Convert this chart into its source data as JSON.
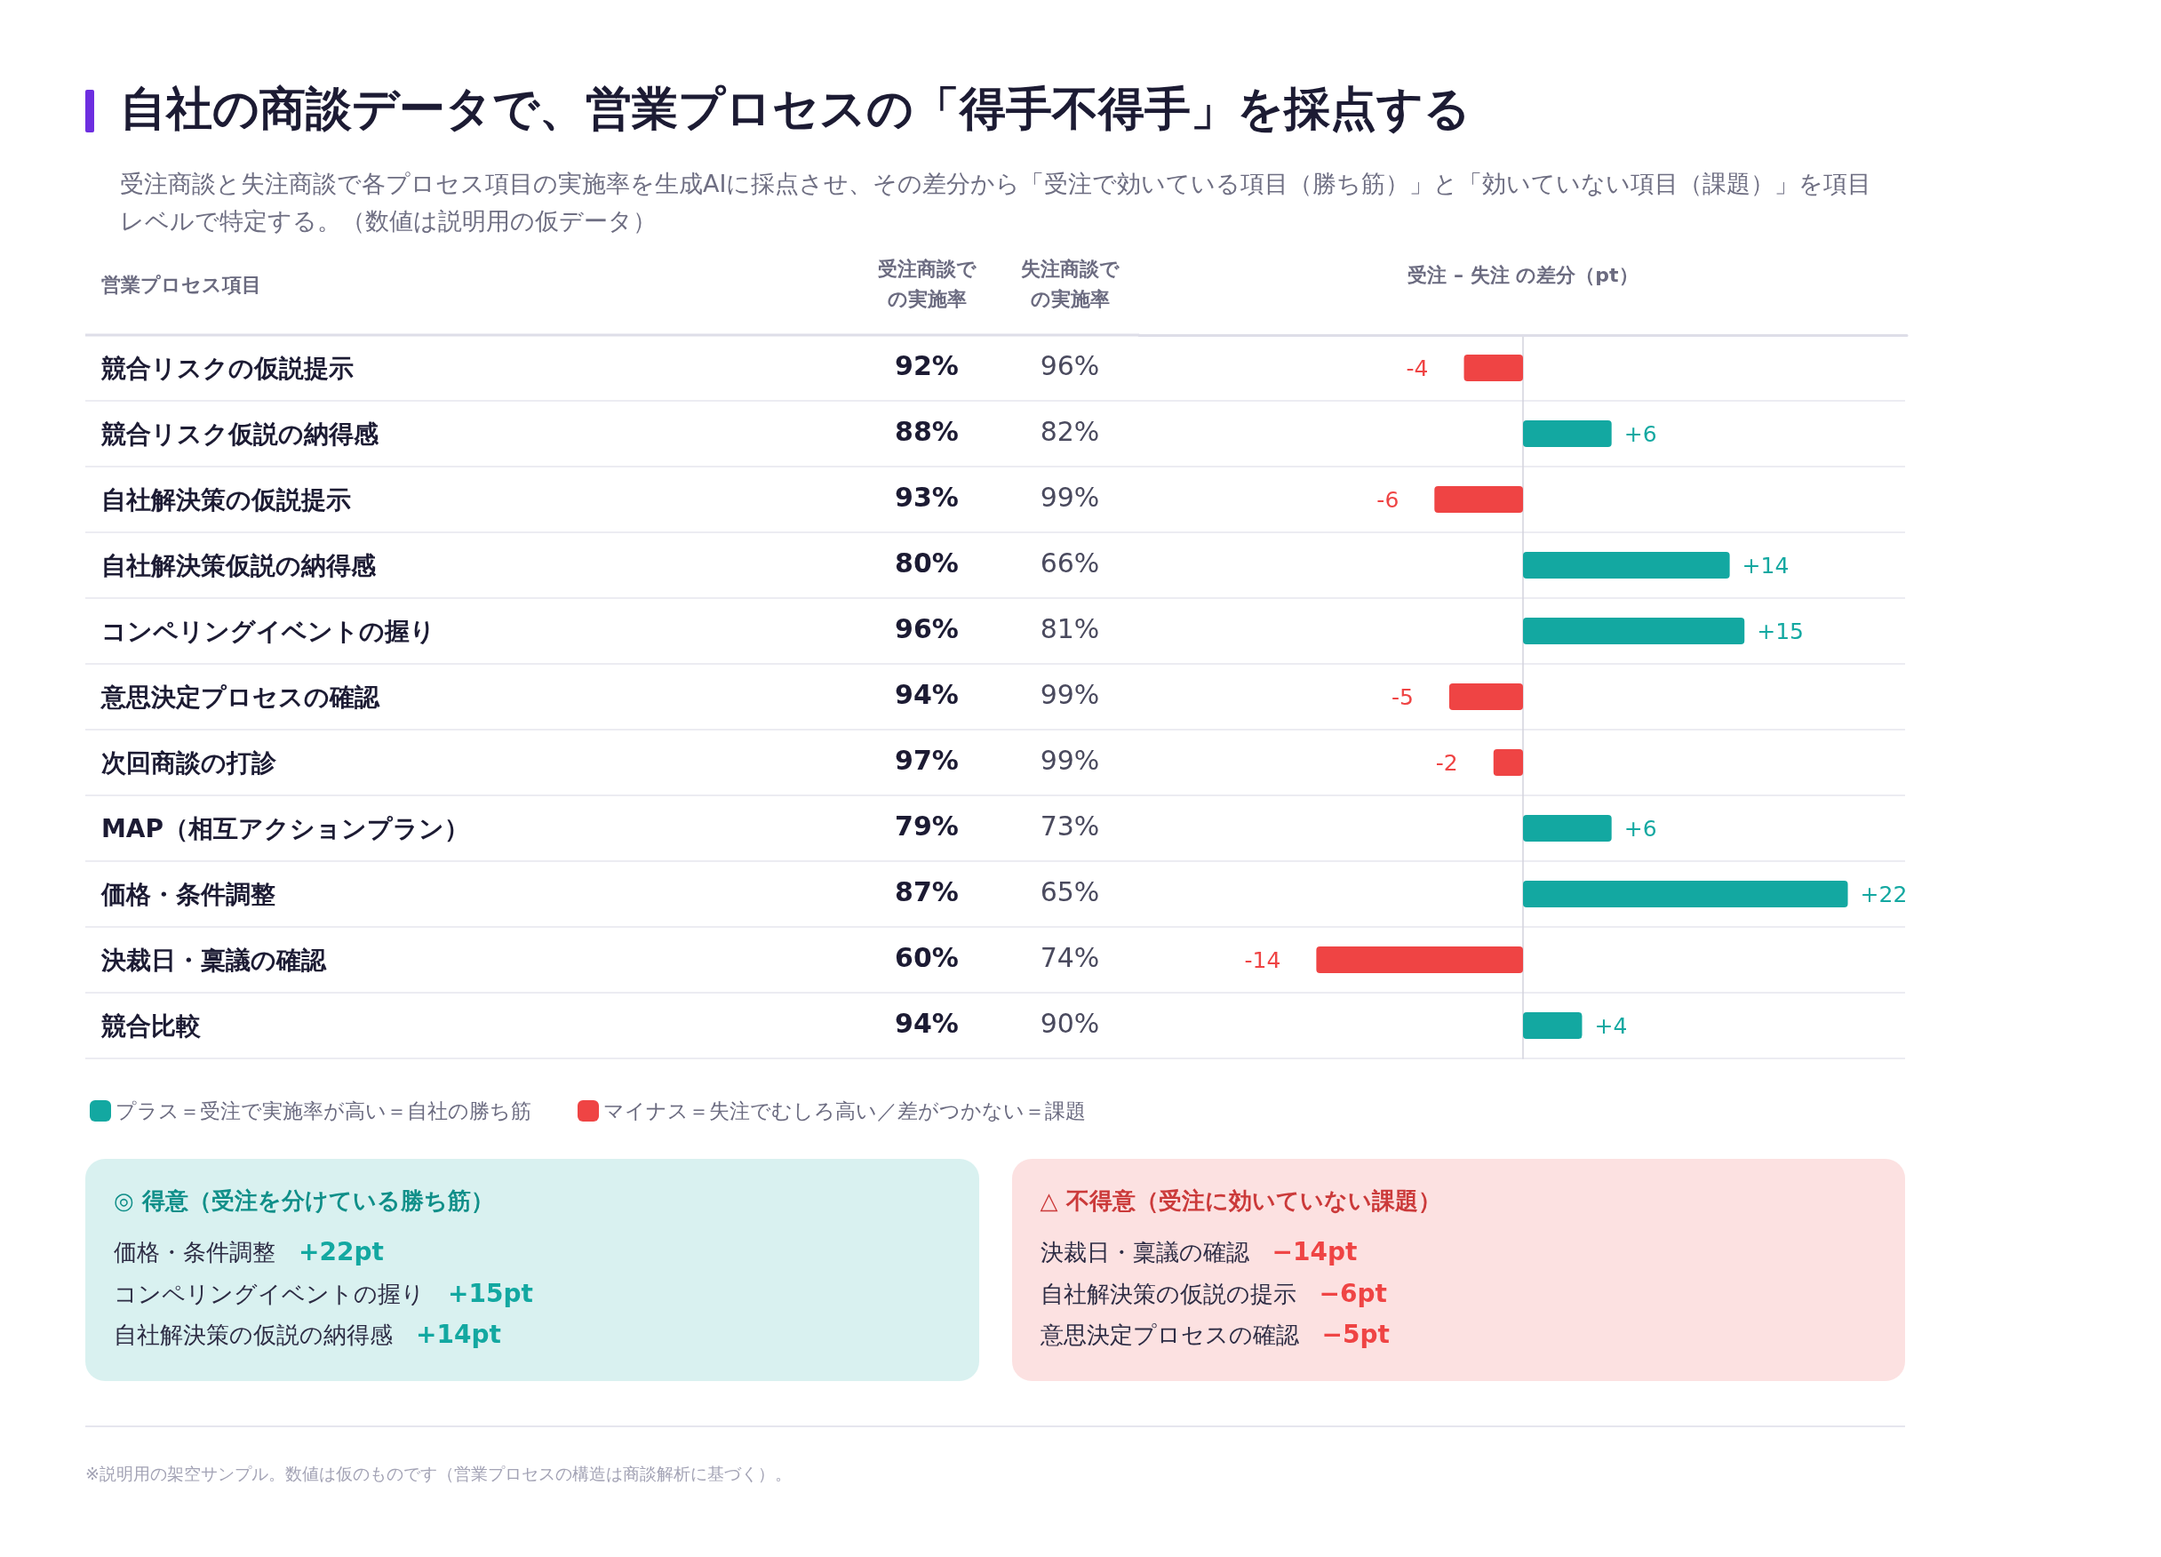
{
  "chart_data": [
    {
      "type": "bar",
      "orientation": "horizontal",
      "stacked": true,
      "title": "自社の商談データで、営業プロセスの「得手不得手」を採点する",
      "subtitle": "受注商談と失注商談で各プロセス項目の実施率を生成AIに採点させ、その差分から「受注で効いている項目（勝ち筋）」と「効いていない項目（課題）」を項目レベルで特定する。（数値は説明用の仮データ）",
      "ylabel": "営業プロセス項目",
      "xlabel": "受注 – 失注 の差分（pt）",
      "categories": [
        "競合リスクの仮説提示",
        "競合リスク仮説の納得感",
        "自社解決策の仮説提示",
        "自社解決策仮説の納得感",
        "コンペリングイベントの握り",
        "意思決定プロセスの確認",
        "次回商談の打診",
        "MAP（相互アクションプラン）",
        "価格・条件調整",
        "決裁日・稟議の確認",
        "競合比較"
      ],
      "xlim": [
        -26,
        26
      ],
      "tick_labels": "y",
      "grid": "y",
      "legend": "bottom left",
      "series": [
        {
          "name": "プラス＝受注で実施率が高い＝自社の勝ち筋",
          "color": "#13a8a1",
          "values": [
            null,
            6,
            null,
            14,
            15,
            null,
            null,
            6,
            22,
            null,
            4
          ],
          "value_labels": [
            null,
            "+6",
            null,
            "+14",
            "+15",
            null,
            null,
            "+6",
            "+22",
            null,
            "+4"
          ]
        },
        {
          "name": "マイナス＝失注でむしろ高い／差がつかない＝課題",
          "color": "#ef4444",
          "values": [
            -4,
            null,
            -6,
            null,
            null,
            -5,
            -2,
            null,
            null,
            -14,
            null
          ],
          "value_labels": [
            "-4",
            null,
            "-6",
            null,
            null,
            "-5",
            "-2",
            null,
            null,
            "-14",
            null
          ]
        }
      ],
      "annotations": [
        "※説明用の架空サンプル。数値は仮のものです（営業プロセスの構造は商談解析に基づく）。"
      ]
    },
    {
      "type": "other",
      "categories": [
        "受注商談での実施率",
        "失注商談での実施率"
      ],
      "series": [
        {
          "values": [
            92,
            96
          ],
          "value_labels": [
            "92%",
            "96%"
          ]
        },
        {
          "values": [
            88,
            82
          ],
          "value_labels": [
            "88%",
            "82%"
          ]
        },
        {
          "values": [
            93,
            99
          ],
          "value_labels": [
            "93%",
            "99%"
          ]
        },
        {
          "values": [
            80,
            66
          ],
          "value_labels": [
            "80%",
            "66%"
          ]
        },
        {
          "values": [
            96,
            81
          ],
          "value_labels": [
            "96%",
            "81%"
          ]
        },
        {
          "values": [
            94,
            99
          ],
          "value_labels": [
            "94%",
            "99%"
          ]
        },
        {
          "values": [
            97,
            99
          ],
          "value_labels": [
            "97%",
            "99%"
          ]
        },
        {
          "values": [
            79,
            73
          ],
          "value_labels": [
            "79%",
            "73%"
          ]
        },
        {
          "values": [
            87,
            65
          ],
          "value_labels": [
            "87%",
            "65%"
          ]
        },
        {
          "values": [
            60,
            74
          ],
          "value_labels": [
            "60%",
            "74%"
          ]
        },
        {
          "values": [
            94,
            90
          ],
          "value_labels": [
            "94%",
            "90%"
          ]
        }
      ]
    },
    {
      "type": "other",
      "title": "◎ 得意（受注を分けている勝ち筋）",
      "categories": [
        "価格・条件調整",
        "コンペリングイベントの握り",
        "自社解決策の仮説の納得感"
      ],
      "value_labels": [
        "+22pt",
        "+15pt",
        "+14pt"
      ],
      "color": "#13a8a1"
    },
    {
      "type": "other",
      "title": "△ 不得意（受注に効いていない課題）",
      "categories": [
        "決裁日・稟議の確認",
        "自社解決策の仮説の提示",
        "意思決定プロセスの確認"
      ],
      "value_labels": [
        "−14pt",
        "−6pt",
        "−5pt"
      ],
      "color": "#ef4444"
    }
  ]
}
